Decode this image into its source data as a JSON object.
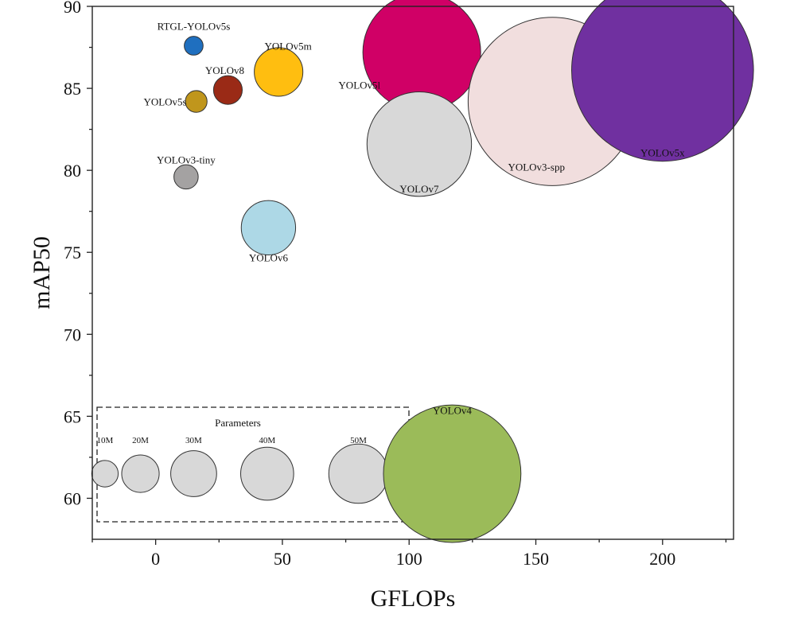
{
  "chart_data": {
    "type": "scatter",
    "subtype": "bubble",
    "title": "",
    "xlabel": "GFLOPs",
    "ylabel": "mAP50",
    "xlim": [
      -25,
      228
    ],
    "ylim": [
      57.5,
      90
    ],
    "xticks": [
      0,
      50,
      100,
      150,
      200
    ],
    "yticks": [
      60,
      65,
      70,
      75,
      80,
      85,
      90
    ],
    "grid": false,
    "points": [
      {
        "label": "RTGL-YOLOv5s",
        "x": 15.0,
        "y": 87.6,
        "params_m": 1.2,
        "color": "#1f6fbf"
      },
      {
        "label": "YOLOv5m",
        "x": 48.5,
        "y": 86.0,
        "params_m": 8.0,
        "color": "#ffbe10"
      },
      {
        "label": "YOLOv8",
        "x": 28.5,
        "y": 84.9,
        "params_m": 2.8,
        "color": "#9a2a16"
      },
      {
        "label": "YOLOv5s",
        "x": 16.0,
        "y": 84.2,
        "params_m": 1.6,
        "color": "#c0961c"
      },
      {
        "label": "YOLOv3-tiny",
        "x": 12.0,
        "y": 79.6,
        "params_m": 2.0,
        "color": "#a4a2a2"
      },
      {
        "label": "YOLOv6",
        "x": 44.5,
        "y": 76.5,
        "params_m": 10.0,
        "color": "#add8e6"
      },
      {
        "label": "YOLOv5l",
        "x": 105.0,
        "y": 87.2,
        "params_m": 47.0,
        "color": "#d00066"
      },
      {
        "label": "YOLOv7",
        "x": 104.0,
        "y": 81.6,
        "params_m": 37.0,
        "color": "#d8d8d8"
      },
      {
        "label": "YOLOv3-spp",
        "x": 156.5,
        "y": 84.2,
        "params_m": 96.0,
        "color": "#f1dede"
      },
      {
        "label": "YOLOv5x",
        "x": 200.0,
        "y": 86.1,
        "params_m": 112.0,
        "color": "#7030a0"
      },
      {
        "label": "YOLOv4",
        "x": 117.0,
        "y": 61.5,
        "params_m": 64.0,
        "color": "#9bbb59"
      }
    ],
    "legend": {
      "title": "Parameters",
      "placement": "bottom-left",
      "items": [
        {
          "label": "10M",
          "x": -20,
          "params_m": 10
        },
        {
          "label": "20M",
          "x": -6,
          "params_m": 20
        },
        {
          "label": "30M",
          "x": 15,
          "params_m": 30
        },
        {
          "label": "40M",
          "x": 44,
          "params_m": 40
        },
        {
          "label": "50M",
          "x": 80,
          "params_m": 50
        }
      ],
      "color": "#d8d8d8"
    }
  }
}
